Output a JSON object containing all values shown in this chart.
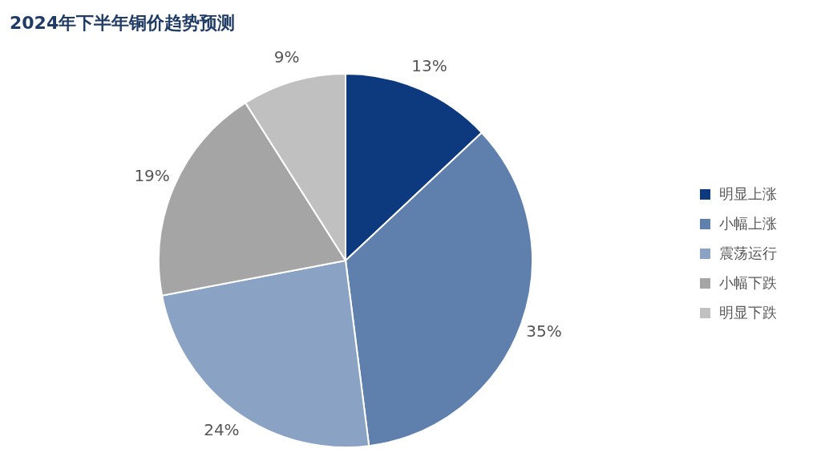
{
  "chart_data": {
    "type": "pie",
    "title": "2024年下半年铜价趋势预测",
    "categories": [
      "明显上涨",
      "小幅上涨",
      "震荡运行",
      "小幅下跌",
      "明显下跌"
    ],
    "values": [
      13,
      35,
      24,
      19,
      9
    ],
    "value_labels": [
      "13%",
      "35%",
      "24%",
      "19%",
      "9%"
    ],
    "colors": [
      "#0d3a7e",
      "#5f80ad",
      "#8aa3c4",
      "#a5a5a5",
      "#c0c0c0"
    ],
    "legend": "right"
  }
}
